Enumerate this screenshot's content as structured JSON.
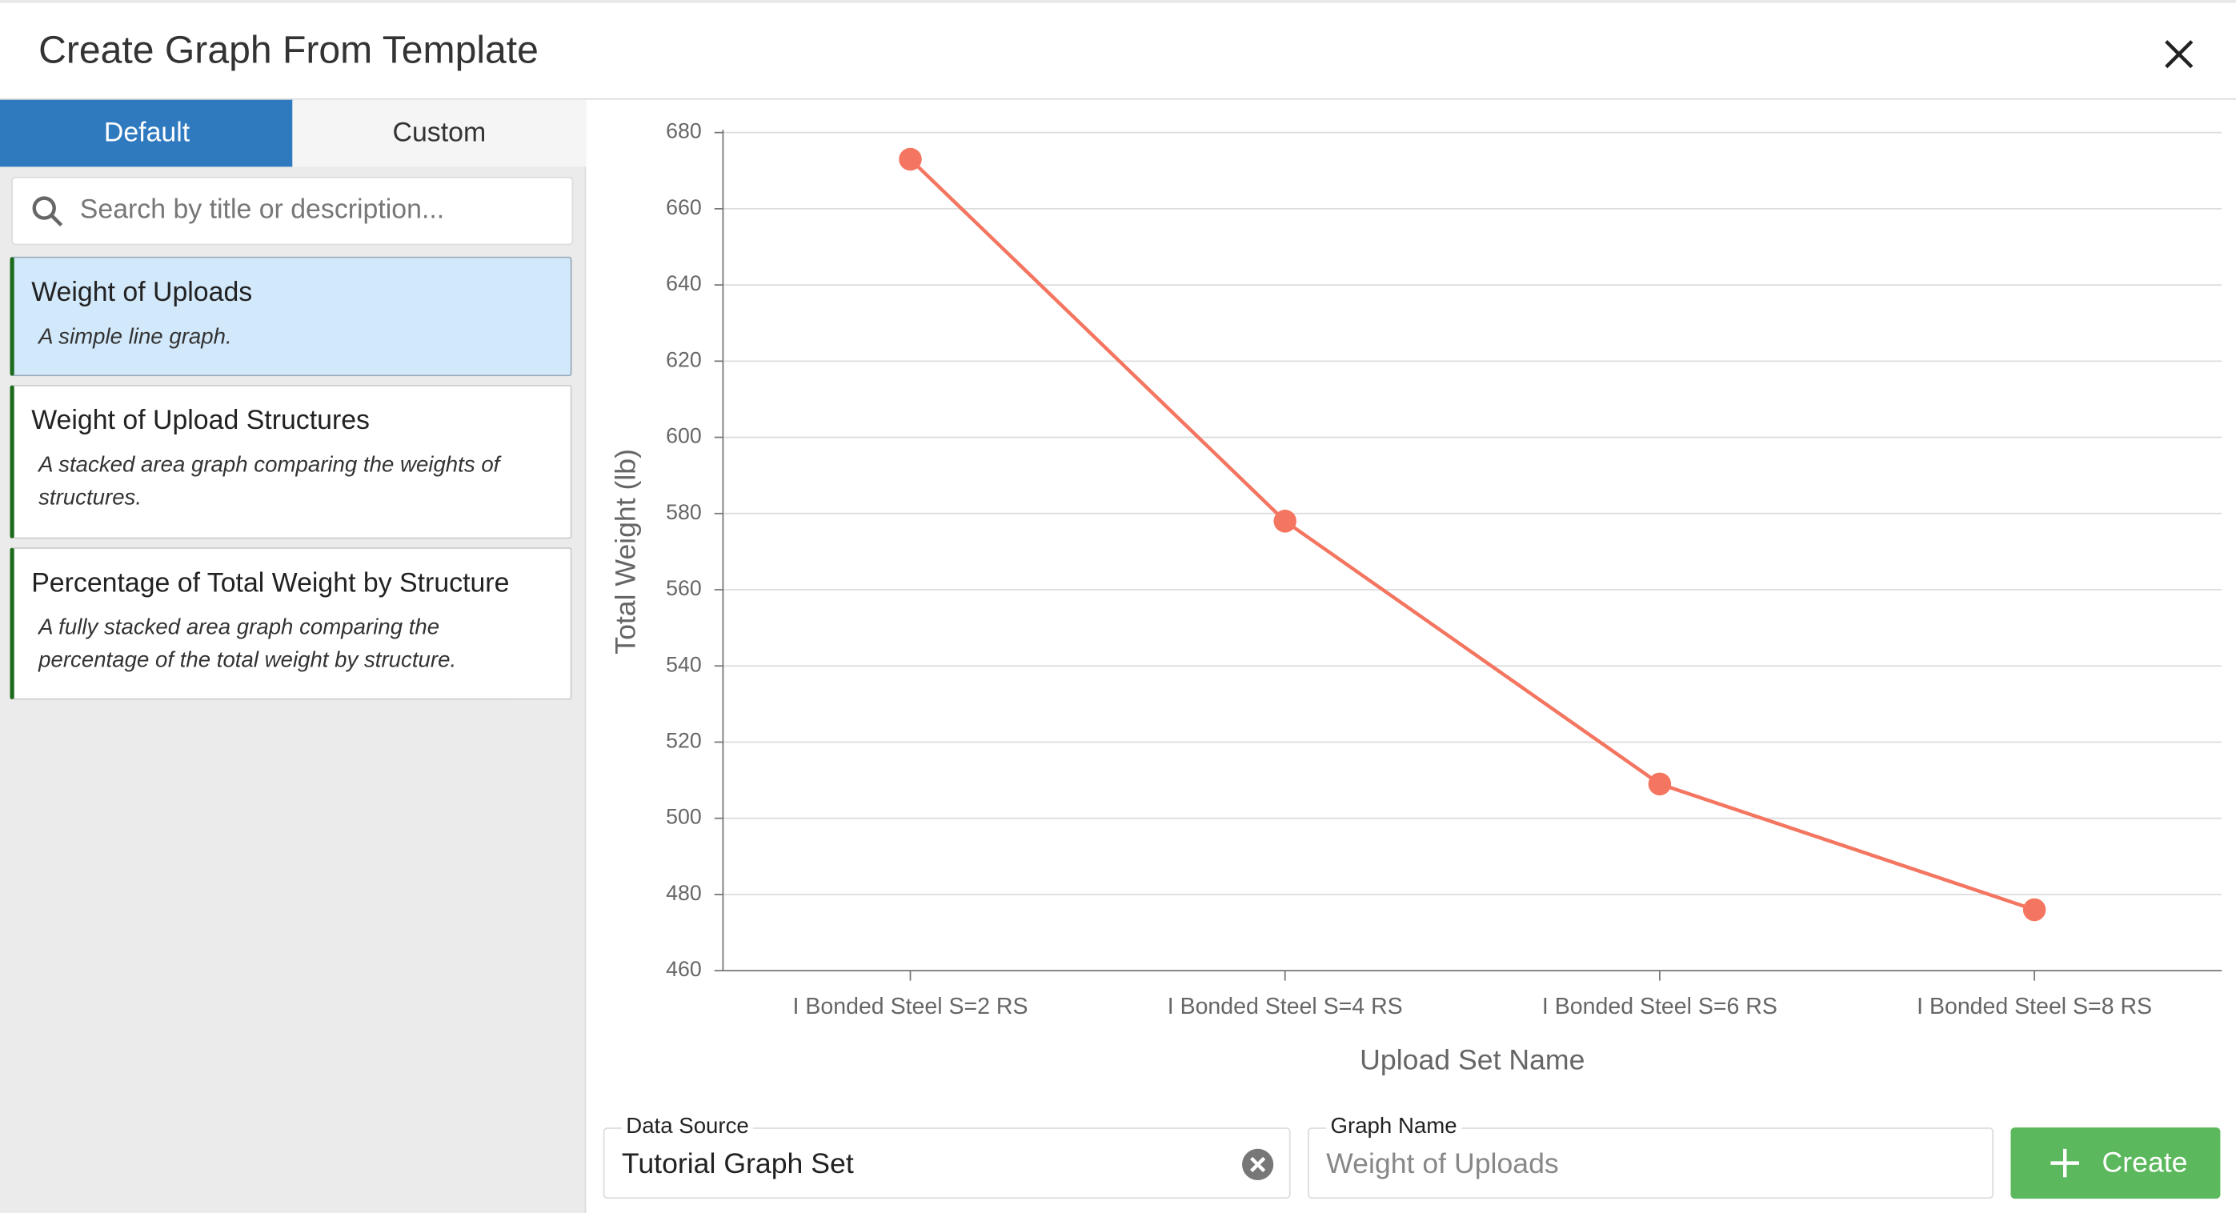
{
  "header": {
    "title": "Create Graph From Template"
  },
  "tabs": [
    "Default",
    "Custom"
  ],
  "search": {
    "placeholder": "Search by title or description..."
  },
  "templates": [
    {
      "title": "Weight of Uploads",
      "description": "A simple line graph."
    },
    {
      "title": "Weight of Upload Structures",
      "description": "A stacked area graph comparing the weights of structures."
    },
    {
      "title": "Percentage of Total Weight by Structure",
      "description": "A fully stacked area graph comparing the percentage of the total weight by structure."
    }
  ],
  "chart_data": {
    "type": "line",
    "x_label": "Upload Set Name",
    "y_label": "Total Weight (lb)",
    "categories": [
      "I Bonded Steel S=2 RS",
      "I Bonded Steel S=4 RS",
      "I Bonded Steel S=6 RS",
      "I Bonded Steel S=8 RS"
    ],
    "values": [
      673,
      578,
      509,
      476
    ],
    "color": "#f47560",
    "ylim": [
      460,
      680
    ],
    "yticks": [
      460,
      480,
      500,
      520,
      540,
      560,
      580,
      600,
      620,
      640,
      660,
      680
    ],
    "grid": true
  },
  "form": {
    "data_source": {
      "label": "Data Source",
      "value": "Tutorial Graph Set"
    },
    "graph_name": {
      "label": "Graph Name",
      "placeholder": "Weight of Uploads"
    },
    "create_button": "Create"
  }
}
